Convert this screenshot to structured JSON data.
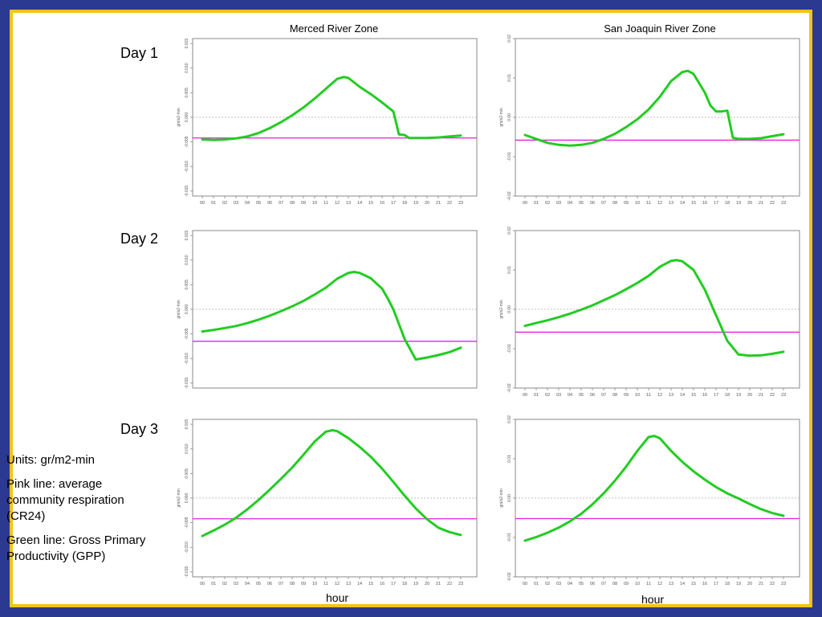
{
  "zones": [
    "Merced River Zone",
    "San Joaquin River Zone"
  ],
  "days": [
    "Day 1",
    "Day 2",
    "Day 3"
  ],
  "legend": {
    "units": "Units: gr/m2-min",
    "pink": "Pink line: average community respiration (CR24)",
    "green": "Green line: Gross Primary Productivity (GPP)"
  },
  "hour_label": "hour",
  "colors": {
    "gpp": "#22cc22",
    "cr24": "#e020e0",
    "zero": "#aaaaaa",
    "frame_blue": "#2b3990",
    "frame_gold": "#f0c419"
  },
  "chart_data": [
    {
      "type": "line",
      "title": "Merced River Zone",
      "ylabel": "gm/s2-min",
      "ylim": [
        -0.016,
        0.016
      ],
      "yticks": [
        "-0.015",
        "-0.010",
        "-0.005",
        "0.000",
        "0.005",
        "0.010",
        "0.015"
      ],
      "xticks": [
        "00",
        "01",
        "02",
        "03",
        "04",
        "05",
        "06",
        "07",
        "08",
        "09",
        "10",
        "11",
        "12",
        "13",
        "14",
        "15",
        "16",
        "17",
        "18",
        "19",
        "20",
        "21",
        "22",
        "23"
      ],
      "cr24": -0.0042,
      "series": [
        {
          "x": [
            0,
            1,
            2,
            3,
            4,
            5,
            6,
            7,
            8,
            9,
            10,
            11,
            12,
            12.6,
            13,
            14,
            15,
            16,
            17,
            17.5,
            18,
            18.4,
            19,
            20,
            21,
            22,
            23
          ],
          "values": [
            -0.0045,
            -0.0046,
            -0.0045,
            -0.0043,
            -0.0039,
            -0.0032,
            -0.0022,
            -0.001,
            0.0004,
            0.002,
            0.0038,
            0.0058,
            0.0078,
            0.0082,
            0.008,
            0.0062,
            0.0047,
            0.003,
            0.0012,
            -0.0035,
            -0.0036,
            -0.0042,
            -0.0042,
            -0.0042,
            -0.0041,
            -0.0039,
            -0.0037
          ]
        }
      ]
    },
    {
      "type": "line",
      "title": "San Joaquin River Zone",
      "ylabel": "gm/s2-min",
      "ylim": [
        -0.02,
        0.02
      ],
      "yticks": [
        "-0.02",
        "-0.01",
        "0.00",
        "0.01",
        "0.02"
      ],
      "xticks": [
        "00",
        "01",
        "02",
        "03",
        "04",
        "05",
        "06",
        "07",
        "08",
        "09",
        "10",
        "11",
        "12",
        "13",
        "14",
        "15",
        "16",
        "17",
        "18",
        "19",
        "20",
        "21",
        "22",
        "23"
      ],
      "cr24": -0.0058,
      "series": [
        {
          "x": [
            0,
            1,
            2,
            3,
            4,
            5,
            6,
            7,
            8,
            9,
            10,
            11,
            12,
            13,
            14,
            14.5,
            15,
            16,
            16.5,
            17,
            17.5,
            18,
            18.5,
            19,
            20,
            21,
            22,
            23
          ],
          "values": [
            -0.0045,
            -0.0055,
            -0.0065,
            -0.007,
            -0.0072,
            -0.007,
            -0.0065,
            -0.0055,
            -0.0042,
            -0.0025,
            -0.0005,
            0.002,
            0.0052,
            0.0092,
            0.0115,
            0.0118,
            0.011,
            0.0063,
            0.003,
            0.0015,
            0.0015,
            0.0017,
            -0.0052,
            -0.0055,
            -0.0055,
            -0.0053,
            -0.0048,
            -0.0043
          ]
        }
      ]
    },
    {
      "type": "line",
      "ylabel": "gm/s2-min",
      "ylim": [
        -0.016,
        0.016
      ],
      "yticks": [
        "-0.015",
        "-0.010",
        "-0.005",
        "0.000",
        "0.005",
        "0.010",
        "0.015"
      ],
      "xticks": [],
      "cr24": -0.0065,
      "series": [
        {
          "x": [
            0,
            1,
            2,
            3,
            4,
            5,
            6,
            7,
            8,
            9,
            10,
            11,
            12,
            13,
            13.5,
            14,
            15,
            16,
            16.5,
            17,
            18,
            19,
            20,
            21,
            22,
            23
          ],
          "values": [
            -0.0045,
            -0.0042,
            -0.0038,
            -0.0034,
            -0.0028,
            -0.0021,
            -0.0013,
            -0.0004,
            0.0006,
            0.0017,
            0.003,
            0.0044,
            0.0062,
            0.0074,
            0.0076,
            0.0074,
            0.0063,
            0.0042,
            0.0022,
            0.0,
            -0.006,
            -0.0102,
            -0.0098,
            -0.0093,
            -0.0087,
            -0.0078
          ]
        }
      ]
    },
    {
      "type": "line",
      "ylabel": "gm/s2-min",
      "ylim": [
        -0.02,
        0.02
      ],
      "yticks": [
        "-0.02",
        "-0.01",
        "0.00",
        "0.01",
        "0.02"
      ],
      "xticks": [
        "00",
        "01",
        "02",
        "03",
        "04",
        "05",
        "06",
        "07",
        "08",
        "09",
        "10",
        "11",
        "12",
        "13",
        "14",
        "15",
        "16",
        "17",
        "18",
        "19",
        "20",
        "21",
        "22",
        "23"
      ],
      "cr24": -0.0058,
      "series": [
        {
          "x": [
            0,
            1,
            2,
            3,
            4,
            5,
            6,
            7,
            8,
            9,
            10,
            11,
            12,
            13,
            13.5,
            14,
            15,
            16,
            17,
            18,
            19,
            20,
            21,
            22,
            23
          ],
          "values": [
            -0.0042,
            -0.0035,
            -0.0028,
            -0.002,
            -0.0011,
            -0.0001,
            0.001,
            0.0023,
            0.0036,
            0.0051,
            0.0067,
            0.0085,
            0.0108,
            0.0123,
            0.0125,
            0.0122,
            0.01,
            0.005,
            -0.0015,
            -0.008,
            -0.0115,
            -0.0118,
            -0.0117,
            -0.0113,
            -0.0108
          ]
        }
      ]
    },
    {
      "type": "line",
      "ylabel": "gm/s2-min",
      "ylim": [
        -0.016,
        0.016
      ],
      "yticks": [
        "-0.015",
        "-0.010",
        "-0.005",
        "0.000",
        "0.005",
        "0.010",
        "0.015"
      ],
      "xticks": [
        "00",
        "01",
        "02",
        "03",
        "04",
        "05",
        "06",
        "07",
        "08",
        "09",
        "10",
        "11",
        "12",
        "13",
        "14",
        "15",
        "16",
        "17",
        "18",
        "19",
        "20",
        "21",
        "22",
        "23"
      ],
      "cr24": -0.0042,
      "series": [
        {
          "x": [
            0,
            1,
            2,
            3,
            4,
            5,
            6,
            7,
            8,
            9,
            10,
            11,
            11.6,
            12,
            13,
            14,
            15,
            16,
            17,
            18,
            19,
            20,
            21,
            22,
            23
          ],
          "values": [
            -0.0077,
            -0.0066,
            -0.0054,
            -0.004,
            -0.0023,
            -0.0004,
            0.0017,
            0.0039,
            0.0062,
            0.0088,
            0.0115,
            0.0135,
            0.0138,
            0.0136,
            0.0122,
            0.0104,
            0.0084,
            0.006,
            0.0033,
            0.0005,
            -0.0021,
            -0.0043,
            -0.006,
            -0.0069,
            -0.0075
          ]
        }
      ]
    },
    {
      "type": "line",
      "ylabel": "gm/s2-min",
      "ylim": [
        -0.02,
        0.02
      ],
      "yticks": [
        "-0.02",
        "-0.01",
        "0.00",
        "0.01",
        "0.02"
      ],
      "xticks": [
        "00",
        "01",
        "02",
        "03",
        "04",
        "05",
        "06",
        "07",
        "08",
        "09",
        "10",
        "11",
        "12",
        "13",
        "14",
        "15",
        "16",
        "17",
        "18",
        "19",
        "20",
        "21",
        "22",
        "23"
      ],
      "cr24": -0.0052,
      "series": [
        {
          "x": [
            0,
            1,
            2,
            3,
            4,
            5,
            6,
            7,
            8,
            9,
            10,
            11,
            11.5,
            12,
            13,
            14,
            15,
            16,
            17,
            18,
            19,
            20,
            21,
            22,
            23
          ],
          "values": [
            -0.0108,
            -0.0099,
            -0.0088,
            -0.0075,
            -0.0059,
            -0.004,
            -0.0016,
            0.0012,
            0.0044,
            0.008,
            0.012,
            0.0155,
            0.0158,
            0.0152,
            0.012,
            0.0092,
            0.0068,
            0.0047,
            0.0028,
            0.0012,
            -0.0001,
            -0.0015,
            -0.0028,
            -0.0038,
            -0.0045
          ]
        }
      ]
    }
  ]
}
